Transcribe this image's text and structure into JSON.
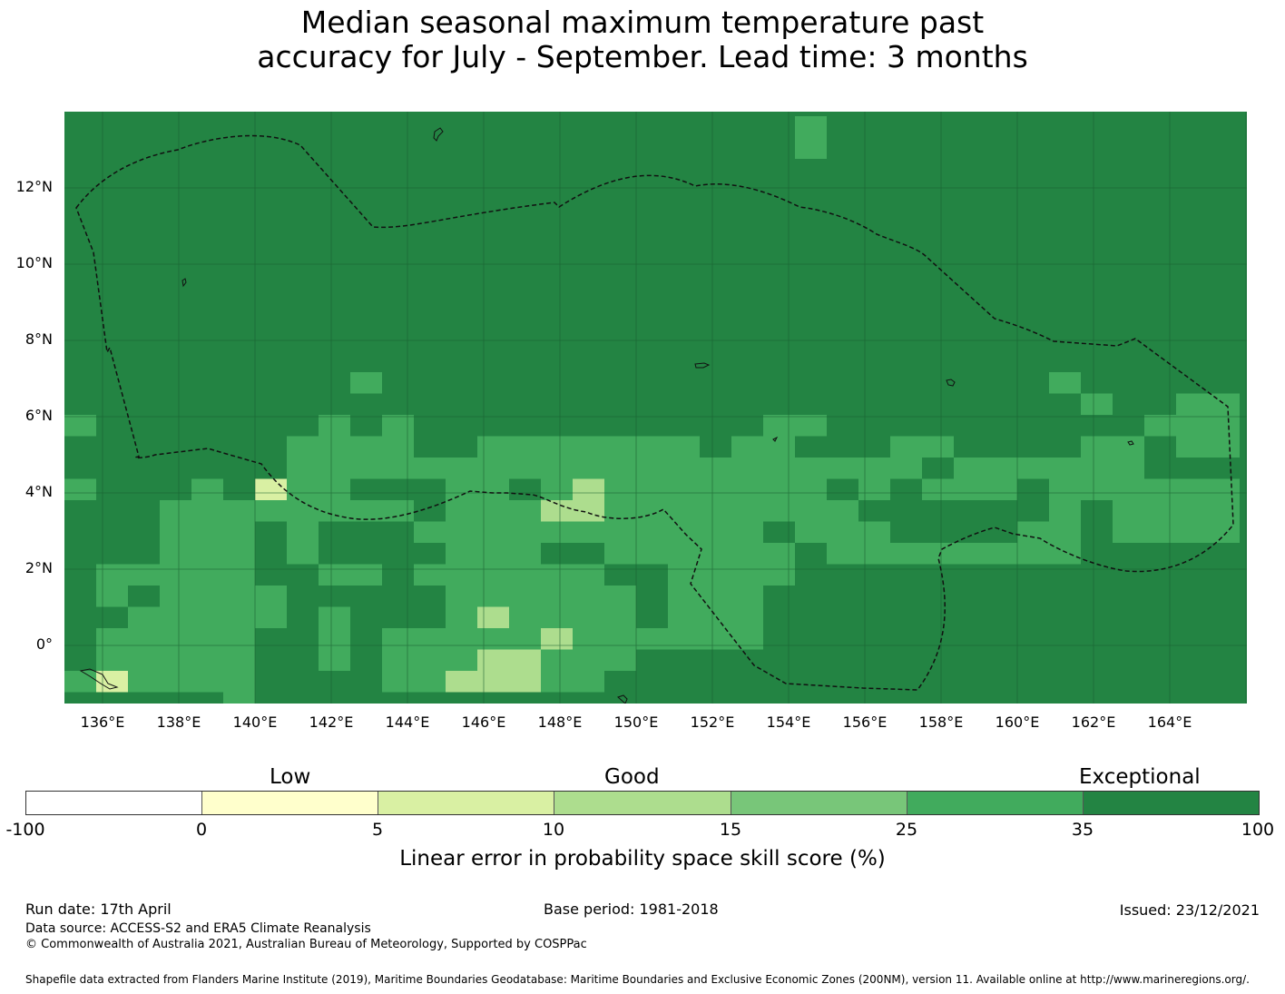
{
  "title": {
    "line1": "Median seasonal maximum temperature past",
    "line2": "accuracy for July - September. Lead time: 3 months"
  },
  "map": {
    "lat_labels": [
      "12°N",
      "10°N",
      "8°N",
      "6°N",
      "4°N",
      "2°N",
      "0°"
    ],
    "lon_labels": [
      "136°E",
      "138°E",
      "140°E",
      "142°E",
      "144°E",
      "146°E",
      "148°E",
      "150°E",
      "152°E",
      "154°E",
      "156°E",
      "158°E",
      "160°E",
      "162°E",
      "164°E"
    ],
    "lon_range": [
      135,
      166
    ],
    "lat_range": [
      -1.5,
      14
    ],
    "boundary": "dashed EEZ outlines (Palau / FSM region)",
    "background_category": "Exceptional"
  },
  "colorbar": {
    "categories": [
      "Low",
      "Good",
      "Exceptional"
    ],
    "ticks": [
      "-100",
      "0",
      "5",
      "10",
      "15",
      "25",
      "35",
      "100"
    ],
    "colors": [
      "#ffffff",
      "#ffffcc",
      "#d9f0a3",
      "#addd8e",
      "#78c679",
      "#41ab5d",
      "#238443"
    ],
    "label": "Linear error in probability space skill score (%)"
  },
  "footer": {
    "run_date": "Run date: 17th April",
    "base_period": "Base period: 1981-2018",
    "issued": "Issued: 23/12/2021",
    "data_source": "Data source: ACCESS-S2 and ERA5 Climate Reanalysis",
    "copyright": "© Commonwealth of Australia 2021, Australian Bureau of Meteorology, Supported by COSPPac",
    "shapefile": "Shapefile data extracted from Flanders Marine Institute (2019), Maritime Boundaries Geodatabase: Maritime Boundaries and Exclusive Economic Zones (200NM), version 11. Available online at http://www.marineregions.org/."
  }
}
